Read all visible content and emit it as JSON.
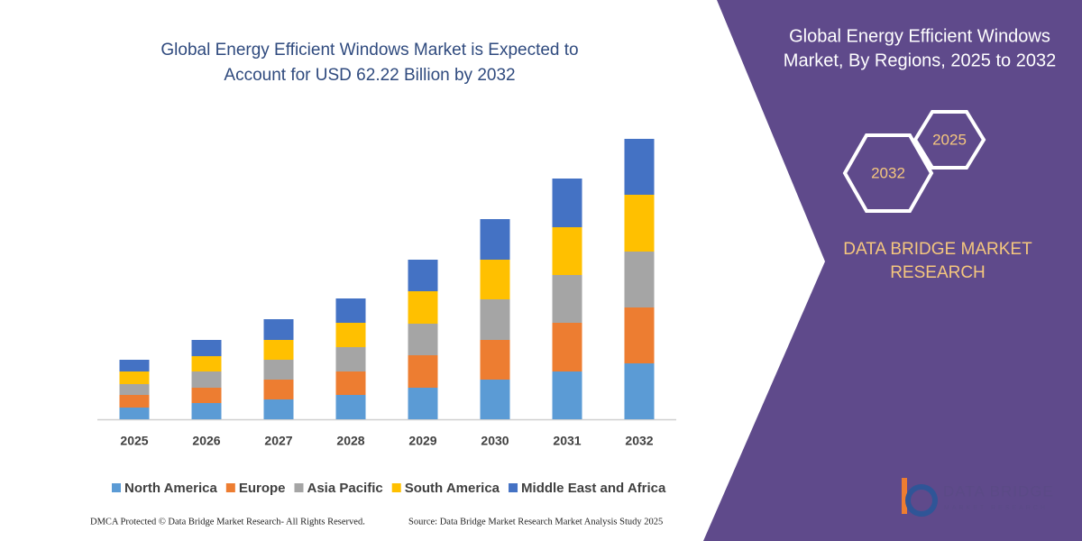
{
  "chart_data": {
    "type": "bar",
    "stacked": true,
    "title": [
      "Global Energy Efficient Windows Market is Expected to",
      "Account for USD 62.22 Billion by 2032"
    ],
    "categories": [
      "2025",
      "2026",
      "2027",
      "2028",
      "2029",
      "2030",
      "2031",
      "2032"
    ],
    "series": [
      {
        "name": "North America",
        "color": "#5b9bd5",
        "values": [
          13,
          18,
          22,
          27,
          35,
          44,
          53,
          62
        ]
      },
      {
        "name": "Europe",
        "color": "#ed7d31",
        "values": [
          14,
          17,
          22,
          26,
          36,
          44,
          54,
          62
        ]
      },
      {
        "name": "Asia Pacific",
        "color": "#a5a5a5",
        "values": [
          12,
          18,
          22,
          27,
          35,
          45,
          53,
          62
        ]
      },
      {
        "name": "South America",
        "color": "#ffc000",
        "values": [
          14,
          17,
          22,
          27,
          36,
          44,
          53,
          63
        ]
      },
      {
        "name": "Middle East and Africa",
        "color": "#4472c4",
        "values": [
          13,
          18,
          23,
          27,
          35,
          45,
          54,
          62
        ]
      }
    ],
    "ylim": [
      0,
      340
    ],
    "legend": "bottom"
  },
  "panel": {
    "title": [
      "Global Energy Efficient Windows",
      "Market, By Regions, 2025 to 2032"
    ],
    "hexagons": [
      "2032",
      "2025"
    ],
    "brand": [
      "DATA BRIDGE MARKET",
      "RESEARCH"
    ],
    "logo": [
      "DATA BRIDGE",
      "MARKET RESEARCH"
    ]
  },
  "footer": {
    "left": "DMCA Protected © Data Bridge Market Research-  All Rights Reserved.",
    "right": "Source: Data Bridge Market Research  Market Analysis Study 2025"
  }
}
